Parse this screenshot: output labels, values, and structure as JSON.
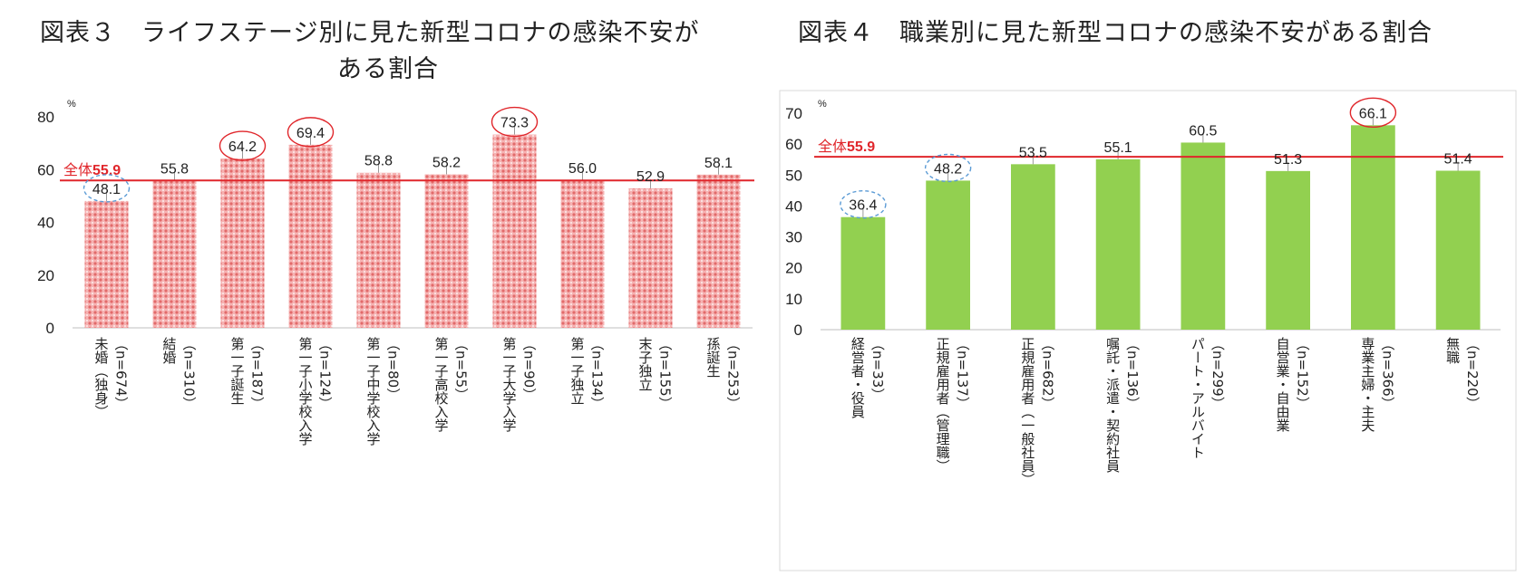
{
  "colors": {
    "pink_bar": "#f29a9a",
    "green_bar": "#92d050",
    "overall_line": "#e0262b",
    "highlight_high": "#e0262b",
    "highlight_low": "#5b9bd5"
  },
  "fig3": {
    "title_line1": "図表３　ライフステージ別に見た新型コロナの感染不安が",
    "title_line2": "ある割合",
    "overall_label": "全体55.9",
    "percent_unit": "%"
  },
  "fig4": {
    "title": "図表４　職業別に見た新型コロナの感染不安がある割合",
    "overall_label": "全体55.9",
    "percent_unit": "%"
  },
  "chart_data": [
    {
      "type": "bar",
      "title": "図表３　ライフステージ別に見た新型コロナの感染不安がある割合",
      "ylabel": "%",
      "ylim": [
        0,
        80
      ],
      "yticks": [
        0,
        20,
        40,
        60,
        80
      ],
      "overall": 55.9,
      "overall_label": "全体55.9",
      "categories": [
        [
          "未婚（独身）",
          "（n=674）"
        ],
        [
          "結婚",
          "（n=310）"
        ],
        [
          "第一子誕生",
          "（n=187）"
        ],
        [
          "第一子小学校入学",
          "（n=124）"
        ],
        [
          "第一子中学校入学",
          "（n=80）"
        ],
        [
          "第一子高校入学",
          "（n=55）"
        ],
        [
          "第一子大学入学",
          "（n=90）"
        ],
        [
          "第一子独立",
          "（n=134）"
        ],
        [
          "末子独立",
          "（n=155）"
        ],
        [
          "孫誕生",
          "（n=253）"
        ]
      ],
      "values": [
        48.1,
        55.8,
        64.2,
        69.4,
        58.8,
        58.2,
        73.3,
        56.0,
        52.9,
        58.1
      ],
      "value_labels": [
        "48.1",
        "55.8",
        "64.2",
        "69.4",
        "58.8",
        "58.2",
        "73.3",
        "56.0",
        "52.9",
        "58.1"
      ],
      "highlight_high": [
        2,
        3,
        6
      ],
      "highlight_low": [
        0
      ]
    },
    {
      "type": "bar",
      "title": "図表４　職業別に見た新型コロナの感染不安がある割合",
      "ylabel": "%",
      "ylim": [
        0,
        70
      ],
      "yticks": [
        0,
        10,
        20,
        30,
        40,
        50,
        60,
        70
      ],
      "overall": 55.9,
      "overall_label": "全体55.9",
      "categories": [
        [
          "経営者・役員",
          "（n=33）"
        ],
        [
          "正規雇用者（管理職）",
          "（n=137）"
        ],
        [
          "正規雇用者（一般社員）",
          "（n=682）"
        ],
        [
          "嘱託・派遣・契約社員",
          "（n=136）"
        ],
        [
          "パート・アルバイト",
          "（n=299）"
        ],
        [
          "自営業・自由業",
          "（n=152）"
        ],
        [
          "専業主婦・主夫",
          "（n=366）"
        ],
        [
          "無職",
          "（n=220）"
        ]
      ],
      "values": [
        36.4,
        48.2,
        53.5,
        55.1,
        60.5,
        51.3,
        66.1,
        51.4
      ],
      "value_labels": [
        "36.4",
        "48.2",
        "53.5",
        "55.1",
        "60.5",
        "51.3",
        "66.1",
        "51.4"
      ],
      "highlight_high": [
        6
      ],
      "highlight_low": [
        0,
        1
      ]
    }
  ]
}
